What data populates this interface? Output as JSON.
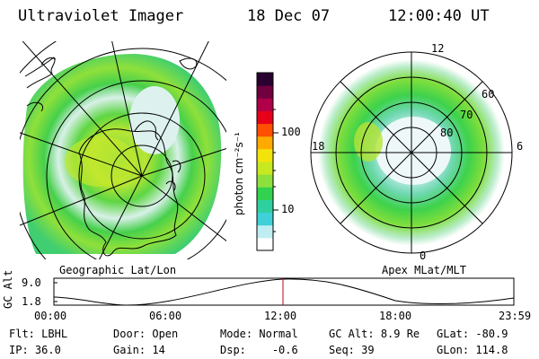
{
  "header": {
    "instrument": "Ultraviolet Imager",
    "date": "18 Dec 07",
    "time": "12:00:40 UT"
  },
  "colorbar": {
    "unit_label": "photon cm⁻²s⁻¹",
    "ticks": [
      "100",
      "10"
    ],
    "colors": [
      "#ffffff",
      "#bfeef2",
      "#3fd0d8",
      "#2fd0a0",
      "#32d24e",
      "#8ee03c",
      "#c8e820",
      "#f2e40a",
      "#ffaa00",
      "#ff5000",
      "#e8001a",
      "#b0004a",
      "#700040",
      "#2a0030"
    ]
  },
  "left_map": {
    "caption": "Geographic Lat/Lon"
  },
  "right_map": {
    "caption": "Apex MLat/MLT",
    "mlt_labels": {
      "top": "12",
      "left": "18",
      "right": "6",
      "bottom": "0"
    },
    "lat_labels": [
      "60",
      "70",
      "80"
    ]
  },
  "altitude_plot": {
    "ylabel": "GC Alt",
    "yticks": [
      "9.0",
      "1.8"
    ],
    "xticks": [
      "00:00",
      "06:00",
      "12:00",
      "18:00",
      "23:59"
    ],
    "marker_color": "#c00020"
  },
  "info": {
    "flt_label": "Flt:",
    "flt_value": "LBHL",
    "ip_label": "IP:",
    "ip_value": "36.0",
    "door_label": "Door:",
    "door_value": "Open",
    "gain_label": "Gain:",
    "gain_value": "14",
    "mode_label": "Mode:",
    "mode_value": "Normal",
    "dsp_label": "Dsp:",
    "dsp_value": "-0.6",
    "gcalt_label": "GC Alt:",
    "gcalt_value": "8.9 Re",
    "seq_label": "Seq:",
    "seq_value": "39",
    "glat_label": "GLat:",
    "glat_value": "-80.9",
    "glon_label": "GLon:",
    "glon_value": "114.8"
  }
}
